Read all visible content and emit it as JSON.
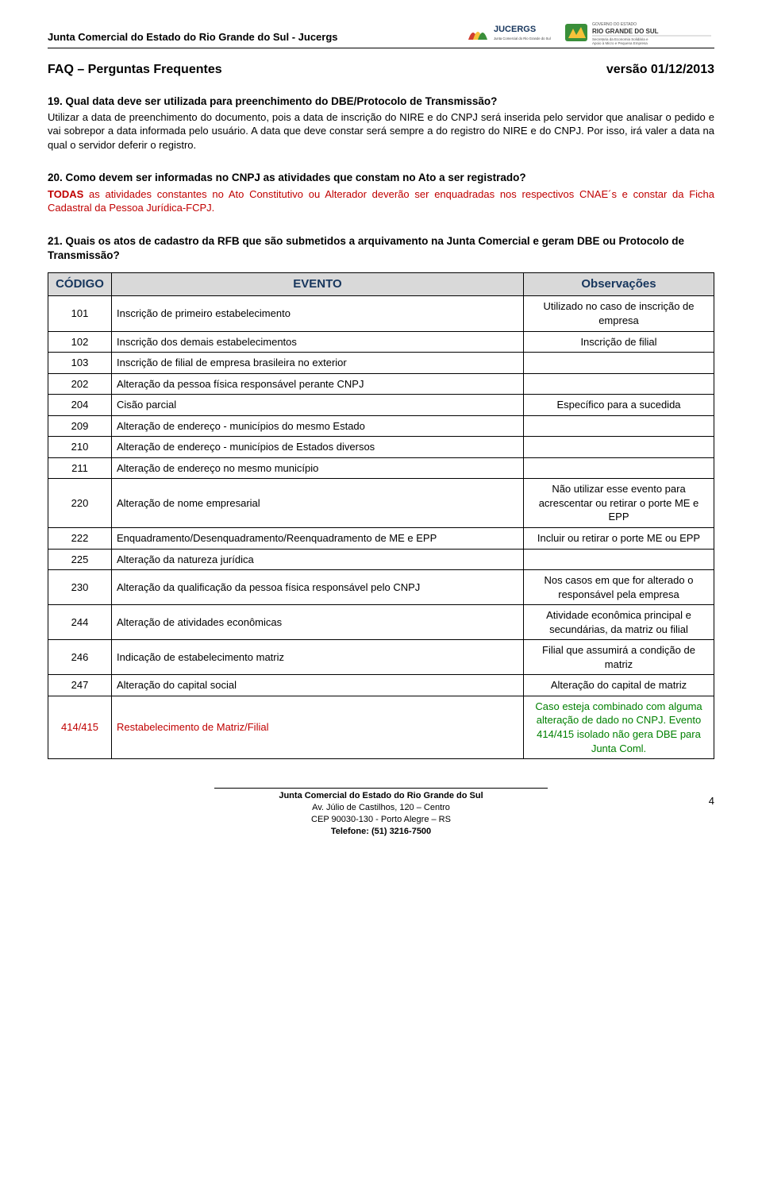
{
  "header": {
    "org_full": "Junta Comercial do Estado do Rio Grande do Sul - Jucergs",
    "logo1_top": "JUCERGS",
    "logo1_sub": "Junta Comercial do Rio Grande do Sul",
    "logo2_top": "GOVERNO DO ESTADO",
    "logo2_main": "RIO GRANDE DO SUL",
    "logo2_sub1": "Secretaria da Economia Solidária e",
    "logo2_sub2": "Apoio à Micro e Pequena Empresa"
  },
  "title": {
    "left": "FAQ – Perguntas Frequentes",
    "right": "versão 01/12/2013"
  },
  "q19": {
    "heading": "19. Qual data deve ser utilizada para preenchimento do DBE/Protocolo de Transmissão?",
    "body": "Utilizar a data de preenchimento do documento, pois a data de inscrição do NIRE e do CNPJ será inserida pelo servidor que analisar o pedido e vai sobrepor a data informada pelo usuário. A data que deve constar será sempre a do registro do NIRE e do CNPJ. Por isso, irá valer a data na qual o servidor deferir o registro."
  },
  "q20": {
    "heading": "20. Como devem ser informadas no CNPJ as atividades que constam no Ato a ser registrado?",
    "highlight": "TODAS",
    "body": " as atividades constantes no Ato Constitutivo ou Alterador deverão ser enquadradas nos respectivos CNAE´s e constar da Ficha Cadastral da Pessoa Jurídica-FCPJ."
  },
  "q21": {
    "heading": "21. Quais os atos de cadastro da RFB que são submetidos a arquivamento na Junta Comercial e geram DBE ou Protocolo de Transmissão?"
  },
  "table": {
    "headers": {
      "c1": "CÓDIGO",
      "c2": "EVENTO",
      "c3": "Observações"
    },
    "rows": [
      {
        "codigo": "101",
        "evento": "Inscrição de primeiro estabelecimento",
        "obs": "Utilizado no caso de inscrição de empresa"
      },
      {
        "codigo": "102",
        "evento": "Inscrição dos demais estabelecimentos",
        "obs": "Inscrição de filial"
      },
      {
        "codigo": "103",
        "evento": "Inscrição de filial de empresa brasileira no exterior",
        "obs": ""
      },
      {
        "codigo": "202",
        "evento": "Alteração da pessoa física responsável perante CNPJ",
        "obs": ""
      },
      {
        "codigo": "204",
        "evento": "Cisão parcial",
        "obs": "Específico para a sucedida"
      },
      {
        "codigo": "209",
        "evento": "Alteração de endereço - municípios do mesmo Estado",
        "obs": ""
      },
      {
        "codigo": "210",
        "evento": "Alteração de endereço - municípios de Estados diversos",
        "obs": ""
      },
      {
        "codigo": "211",
        "evento": "Alteração de endereço no mesmo município",
        "obs": ""
      },
      {
        "codigo": "220",
        "evento": "Alteração de nome empresarial",
        "obs": "Não utilizar esse evento para acrescentar ou retirar o porte ME e EPP"
      },
      {
        "codigo": "222",
        "evento": "Enquadramento/Desenquadramento/Reenquadramento de ME e EPP",
        "obs": "Incluir ou retirar o porte ME ou EPP"
      },
      {
        "codigo": "225",
        "evento": "Alteração da natureza jurídica",
        "obs": ""
      },
      {
        "codigo": "230",
        "evento": "Alteração da qualificação da pessoa física responsável pelo CNPJ",
        "obs": "Nos casos em que for alterado o responsável pela empresa"
      },
      {
        "codigo": "244",
        "evento": "Alteração de atividades econômicas",
        "obs": "Atividade econômica principal e secundárias, da matriz ou filial"
      },
      {
        "codigo": "246",
        "evento": "Indicação de estabelecimento matriz",
        "obs": "Filial que assumirá a condição de matriz"
      },
      {
        "codigo": "247",
        "evento": "Alteração do capital social",
        "obs": "Alteração do capital de matriz"
      },
      {
        "codigo": "414/415",
        "evento": "Restabelecimento de Matriz/Filial",
        "obs": "Caso esteja combinado com alguma alteração de dado no CNPJ. Evento 414/415 isolado não gera DBE para Junta Coml.",
        "obs_green": true,
        "codigo_red": true,
        "evento_red": true
      }
    ]
  },
  "footer": {
    "line1": "Junta Comercial do Estado do Rio Grande do Sul",
    "line2": "Av. Júlio de Castilhos, 120 – Centro",
    "line3": "CEP 90030-130 - Porto Alegre – RS",
    "line4": "Telefone: (51) 3216-7500",
    "page": "4"
  }
}
